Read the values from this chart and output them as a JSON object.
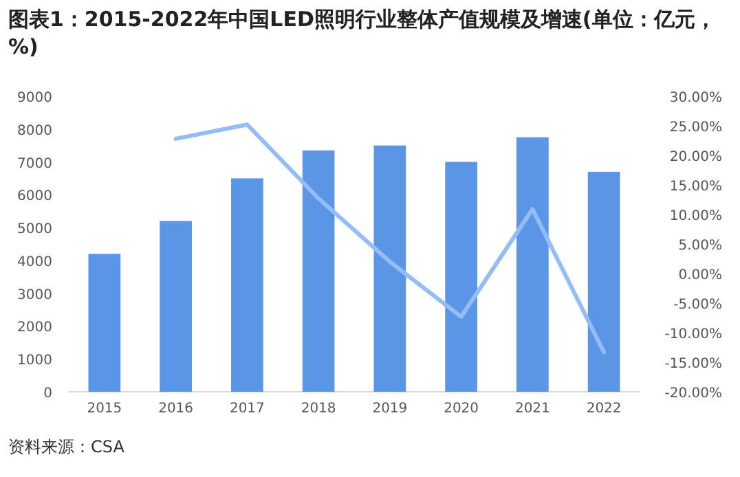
{
  "chart_data": {
    "type": "bar",
    "title": "图表1：2015-2022年中国LED照明行业整体产值规模及增速(单位：亿元，%)",
    "categories": [
      "2015",
      "2016",
      "2017",
      "2018",
      "2019",
      "2020",
      "2021",
      "2022"
    ],
    "series": [
      {
        "color": "#5b96e6",
        "values": [
          4200,
          5200,
          6500,
          7350,
          7500,
          7000,
          7750,
          6700
        ]
      },
      {
        "type": "line",
        "axis": "y2",
        "color": "#94bcf5",
        "values": [
          null,
          22.8,
          25.2,
          12.7,
          2.0,
          -7.3,
          10.9,
          -13.3
        ]
      }
    ],
    "ylim": [
      0,
      9000
    ],
    "yticks": [
      0,
      1000,
      2000,
      3000,
      4000,
      5000,
      6000,
      7000,
      8000,
      9000
    ],
    "y2lim": [
      -20,
      30
    ],
    "y2ticks": [
      {
        "value": -20,
        "label": "-20.00%"
      },
      {
        "value": -15,
        "label": "-15.00%"
      },
      {
        "value": -10,
        "label": "-10.00%"
      },
      {
        "value": -5,
        "label": "-5.00%"
      },
      {
        "value": 0,
        "label": "0.00%"
      },
      {
        "value": 5,
        "label": "5.00%"
      },
      {
        "value": 10,
        "label": "10.00%"
      },
      {
        "value": 15,
        "label": "15.00%"
      },
      {
        "value": 20,
        "label": "20.00%"
      },
      {
        "value": 25,
        "label": "25.00%"
      },
      {
        "value": 30,
        "label": "30.00%"
      }
    ],
    "annotations": [
      "资料来源：CSA"
    ]
  }
}
